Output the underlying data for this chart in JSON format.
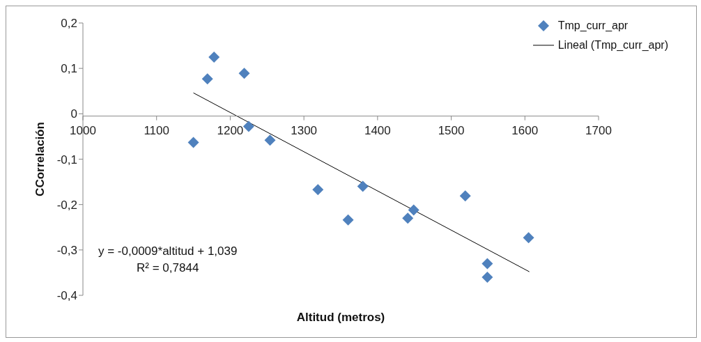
{
  "chart_data": {
    "type": "scatter",
    "xlabel": "Altitud (metros)",
    "ylabel": "CCorrelación",
    "xlim": [
      1000,
      1700
    ],
    "xticks": [
      1000,
      1100,
      1200,
      1300,
      1400,
      1500,
      1600,
      1700
    ],
    "ylim": [
      -0.4,
      0.2
    ],
    "yticks": [
      {
        "value": -0.4,
        "label": "-0,4"
      },
      {
        "value": -0.3,
        "label": "-0,3"
      },
      {
        "value": -0.2,
        "label": "-0,2"
      },
      {
        "value": -0.1,
        "label": "-0,1"
      },
      0,
      {
        "value": 0.1,
        "label": "0,1"
      },
      {
        "value": 0.2,
        "label": "0,2"
      }
    ],
    "grid": false,
    "legend": "top right",
    "marker": "diamond",
    "series": [
      {
        "name": "Tmp_curr_apr",
        "type": "scatter",
        "color": "#4f81bd",
        "x": [
          1150,
          1169,
          1178,
          1219,
          1225,
          1254,
          1319,
          1360,
          1380,
          1441,
          1449,
          1519,
          1605,
          1549,
          1549
        ],
        "values": [
          -0.063,
          0.077,
          0.125,
          0.089,
          -0.028,
          -0.058,
          -0.167,
          -0.234,
          -0.16,
          -0.23,
          -0.212,
          -0.181,
          -0.273,
          -0.33,
          -0.36
        ]
      },
      {
        "name": "Lineal (Tmp_curr_apr)",
        "type": "line",
        "color": "#000000",
        "line_style": "solid",
        "marker": "none",
        "x": [
          1150,
          1606
        ],
        "values": [
          0.046,
          -0.348
        ]
      }
    ],
    "annotations": [
      "y = -0,0009*altitud + 1,039",
      "R² = 0,7844"
    ]
  }
}
